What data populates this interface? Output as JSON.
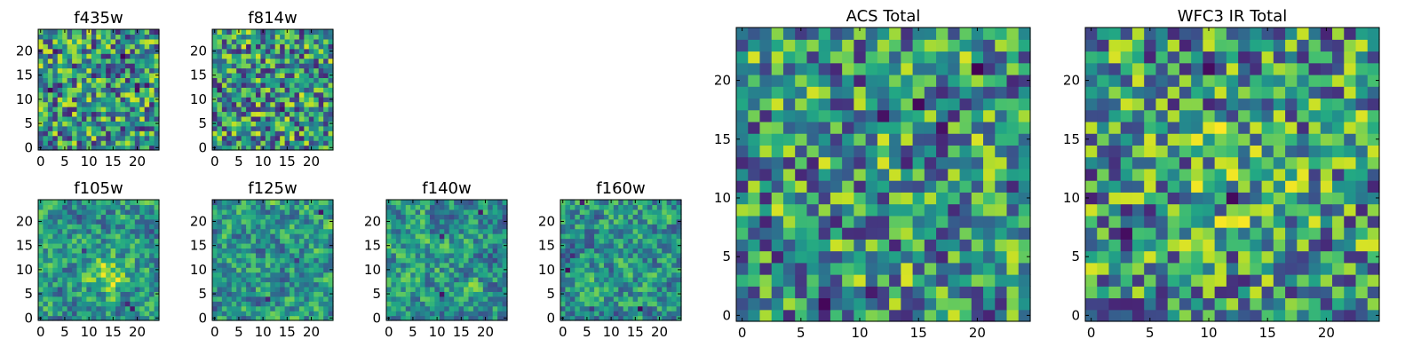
{
  "figure": {
    "colormap": "viridis",
    "colors": [
      "#440154",
      "#3b528b",
      "#21918c",
      "#5ec962",
      "#fde725"
    ]
  },
  "chart_data": [
    {
      "id": "f435w",
      "type": "heatmap",
      "title": "f435w",
      "grid_size": 25,
      "xlim": [
        0,
        24
      ],
      "ylim": [
        0,
        24
      ],
      "xticks": [
        "0",
        "5",
        "10",
        "15",
        "20"
      ],
      "yticks": [
        "0",
        "5",
        "10",
        "15",
        "20"
      ],
      "appearance": "high-contrast pixel noise, mostly green-yellow, scattered dark blue pixels",
      "seed": 11
    },
    {
      "id": "f814w",
      "type": "heatmap",
      "title": "f814w",
      "grid_size": 25,
      "xlim": [
        0,
        24
      ],
      "ylim": [
        0,
        24
      ],
      "xticks": [
        "0",
        "5",
        "10",
        "15",
        "20"
      ],
      "yticks": [
        "0",
        "5",
        "10",
        "15",
        "20"
      ],
      "appearance": "pixel noise, mostly yellow-green, few dark pixels",
      "seed": 23
    },
    {
      "id": "f105w",
      "type": "heatmap",
      "title": "f105w",
      "grid_size": 25,
      "xlim": [
        0,
        24
      ],
      "ylim": [
        0,
        24
      ],
      "xticks": [
        "0",
        "5",
        "10",
        "15",
        "20"
      ],
      "yticks": [
        "0",
        "5",
        "10",
        "15",
        "20"
      ],
      "appearance": "smooth noise with bright yellow source near center (x~14, y~9)",
      "seed": 37
    },
    {
      "id": "f125w",
      "type": "heatmap",
      "title": "f125w",
      "grid_size": 25,
      "xlim": [
        0,
        24
      ],
      "ylim": [
        0,
        24
      ],
      "xticks": [
        "0",
        "5",
        "10",
        "15",
        "20"
      ],
      "yticks": [
        "0",
        "5",
        "10",
        "15",
        "20"
      ],
      "appearance": "smooth green-yellow noise with teal patches",
      "seed": 41
    },
    {
      "id": "f140w",
      "type": "heatmap",
      "title": "f140w",
      "grid_size": 25,
      "xlim": [
        0,
        24
      ],
      "ylim": [
        0,
        24
      ],
      "xticks": [
        "0",
        "5",
        "10",
        "15",
        "20"
      ],
      "yticks": [
        "0",
        "5",
        "10",
        "15",
        "20"
      ],
      "appearance": "smooth green-yellow noise with teal patches",
      "seed": 53
    },
    {
      "id": "f160w",
      "type": "heatmap",
      "title": "f160w",
      "grid_size": 25,
      "xlim": [
        0,
        24
      ],
      "ylim": [
        0,
        24
      ],
      "xticks": [
        "0",
        "5",
        "10",
        "15",
        "20"
      ],
      "yticks": [
        "0",
        "5",
        "10",
        "15",
        "20"
      ],
      "appearance": "smooth yellow-green noise, a few dark pixels near bottom",
      "seed": 67
    },
    {
      "id": "acs-total",
      "type": "heatmap",
      "title": "ACS Total",
      "grid_size": 25,
      "xlim": [
        0,
        24
      ],
      "ylim": [
        0,
        24
      ],
      "xticks": [
        "0",
        "5",
        "10",
        "15",
        "20"
      ],
      "yticks": [
        "0",
        "5",
        "10",
        "15",
        "20"
      ],
      "appearance": "blocky green-yellow noise with scattered dark purple pixels",
      "seed": 79
    },
    {
      "id": "wfc3-ir-total",
      "type": "heatmap",
      "title": "WFC3 IR Total",
      "grid_size": 25,
      "xlim": [
        0,
        24
      ],
      "ylim": [
        0,
        24
      ],
      "xticks": [
        "0",
        "5",
        "10",
        "15",
        "20"
      ],
      "yticks": [
        "0",
        "5",
        "10",
        "15",
        "20"
      ],
      "appearance": "blocky green-yellow noise, slightly brighter center, scattered dark pixels",
      "seed": 97
    }
  ]
}
